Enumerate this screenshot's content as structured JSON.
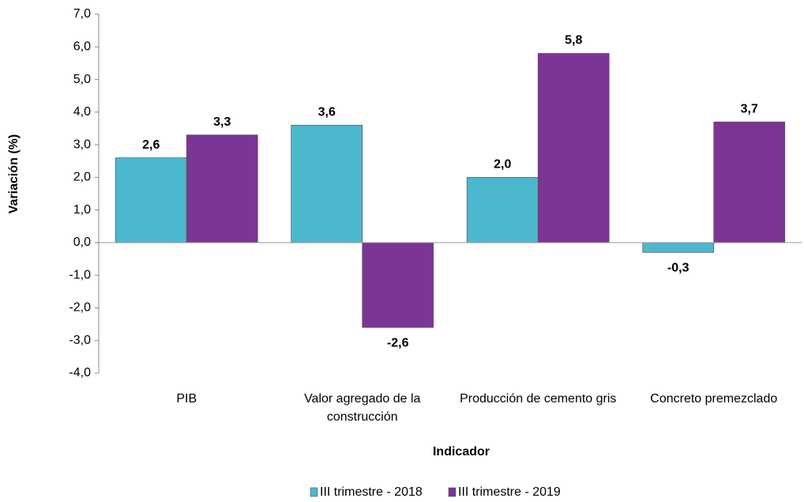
{
  "chart_data": {
    "type": "bar",
    "y_axis_label": "Variación  (%)",
    "x_axis_label": "Indicador",
    "categories": [
      "PIB",
      "Valor agregado de la construcción",
      "Producción de cemento gris",
      "Concreto premezclado"
    ],
    "series": [
      {
        "name": "III trimestre - 2018",
        "color": "#4bb8cf",
        "values": [
          2.6,
          3.6,
          2.0,
          -0.3
        ],
        "value_labels": [
          "2,6",
          "3,6",
          "2,0",
          "-0,3"
        ]
      },
      {
        "name": "III trimestre - 2019",
        "color": "#7b3596",
        "values": [
          3.3,
          -2.6,
          5.8,
          3.7
        ],
        "value_labels": [
          "3,3",
          "-2,6",
          "5,8",
          "3,7"
        ]
      }
    ],
    "ylim": [
      -4,
      7
    ],
    "yticks": [
      {
        "value": -4,
        "label": "-4,0"
      },
      {
        "value": -3,
        "label": "-3,0"
      },
      {
        "value": -2,
        "label": "-2,0"
      },
      {
        "value": -1,
        "label": "-1,0"
      },
      {
        "value": 0,
        "label": "0,0"
      },
      {
        "value": 1,
        "label": "1,0"
      },
      {
        "value": 2,
        "label": "2,0"
      },
      {
        "value": 3,
        "label": "3,0"
      },
      {
        "value": 4,
        "label": "4,0"
      },
      {
        "value": 5,
        "label": "5,0"
      },
      {
        "value": 6,
        "label": "6,0"
      },
      {
        "value": 7,
        "label": "7,0"
      }
    ],
    "legend": "bottom"
  }
}
